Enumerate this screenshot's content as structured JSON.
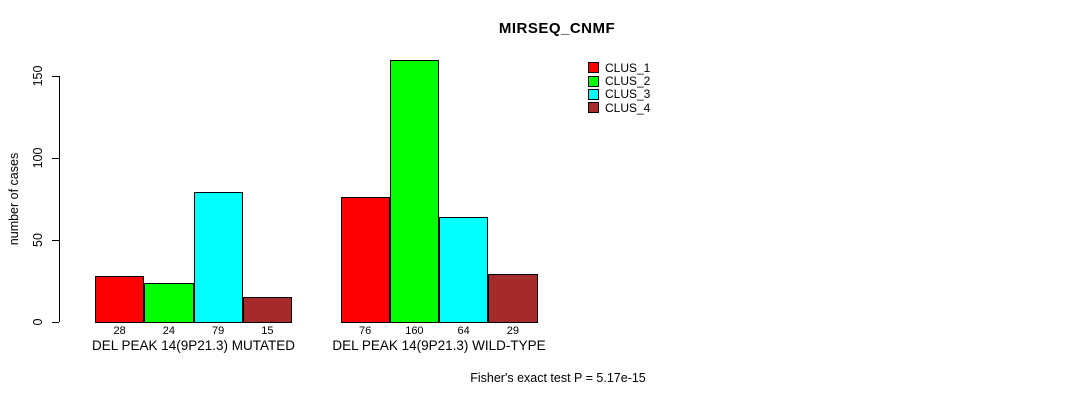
{
  "chart_data": {
    "type": "bar",
    "title": "MIRSEQ_CNMF",
    "xlabel": "",
    "ylabel": "number of cases",
    "ylim": [
      0,
      160
    ],
    "yticks": [
      0,
      50,
      100,
      150
    ],
    "grid": false,
    "legend_position": "top-right",
    "categories": [
      "DEL PEAK 14(9P21.3) MUTATED",
      "DEL PEAK 14(9P21.3) WILD-TYPE"
    ],
    "series": [
      {
        "name": "CLUS_1",
        "color": "#FF0000",
        "values": [
          28,
          76
        ]
      },
      {
        "name": "CLUS_2",
        "color": "#00FF00",
        "values": [
          24,
          160
        ]
      },
      {
        "name": "CLUS_3",
        "color": "#00FFFF",
        "values": [
          79,
          64
        ]
      },
      {
        "name": "CLUS_4",
        "color": "#A52A2A",
        "values": [
          15,
          29
        ]
      }
    ],
    "bar_value_labels": [
      [
        "28",
        "24",
        "79",
        "15"
      ],
      [
        "76",
        "160",
        "64",
        "29"
      ]
    ],
    "annotation": "Fisher's exact test P = 5.17e-15"
  }
}
